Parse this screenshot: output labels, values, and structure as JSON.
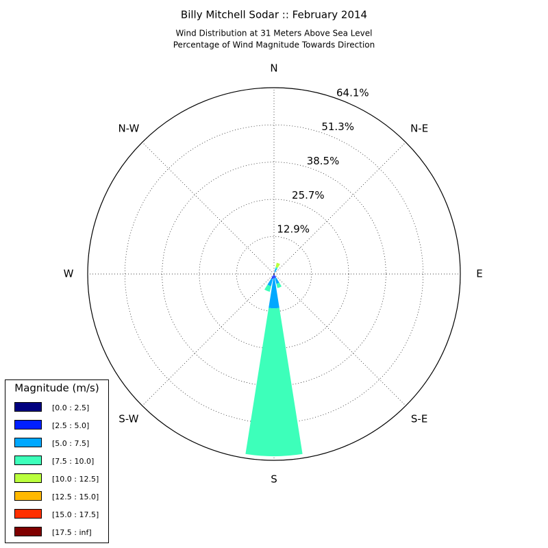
{
  "chart_data": {
    "type": "windrose",
    "title": "Billy Mitchell Sodar :: February 2014",
    "subtitle": [
      "Wind Distribution at 31 Meters Above Sea Level",
      "Percentage of Wind Magnitude Towards Direction"
    ],
    "categories": [
      "N",
      null,
      "N-E",
      null,
      "E",
      null,
      "S-E",
      null,
      "S",
      null,
      "S-W",
      null,
      "W",
      null,
      "N-W",
      null
    ],
    "rlim": [
      0,
      64.1
    ],
    "rticks": [
      {
        "value": 12.9,
        "label": "12.9%"
      },
      {
        "value": 25.7,
        "label": "25.7%"
      },
      {
        "value": 38.5,
        "label": "38.5%"
      },
      {
        "value": 51.3,
        "label": "51.3%"
      },
      {
        "value": 64.1,
        "label": "64.1%"
      }
    ],
    "grid": true,
    "legend_title": "Magnitude (m/s)",
    "legend_position": "lower left",
    "series": [
      {
        "name": "[0.0 : 2.5]",
        "color": "#00007f",
        "values": [
          0,
          0,
          0,
          0,
          0,
          0,
          0,
          0.3,
          0.5,
          0.3,
          0,
          0,
          0,
          0,
          0,
          0
        ]
      },
      {
        "name": "[2.5 : 5.0]",
        "color": "#0020ff",
        "values": [
          0,
          0.5,
          0,
          0,
          0,
          0,
          0,
          1.0,
          1.0,
          1.5,
          0,
          0,
          0,
          0,
          0,
          0
        ]
      },
      {
        "name": "[5.0 : 7.5]",
        "color": "#00a8ff",
        "values": [
          0,
          1.5,
          0,
          0,
          0,
          0,
          0,
          2.2,
          10.3,
          2.5,
          0,
          0,
          0,
          0,
          0,
          0
        ]
      },
      {
        "name": "[7.5 : 10.0]",
        "color": "#3dffba",
        "values": [
          0,
          0.5,
          0,
          0,
          0,
          0,
          0,
          1.5,
          50.9,
          2.0,
          0,
          0,
          0,
          0,
          0,
          0
        ]
      },
      {
        "name": "[10.0 : 12.5]",
        "color": "#baff3d",
        "values": [
          0,
          1.5,
          0,
          0,
          0,
          0,
          0,
          0,
          0,
          0,
          0,
          0,
          0,
          0,
          0,
          0
        ]
      },
      {
        "name": "[12.5 : 15.0]",
        "color": "#ffb900",
        "values": [
          0,
          0,
          0,
          0,
          0,
          0,
          0,
          0,
          0,
          0,
          0,
          0,
          0,
          0,
          0,
          0
        ]
      },
      {
        "name": "[15.0 : 17.5]",
        "color": "#ff3000",
        "values": [
          0,
          0,
          0,
          0,
          0,
          0,
          0,
          0,
          0,
          0,
          0,
          0,
          0,
          0,
          0,
          0
        ]
      },
      {
        "name": "[17.5 : inf]",
        "color": "#7f0000",
        "values": [
          0,
          0,
          0,
          0,
          0,
          0,
          0,
          0,
          0,
          0,
          0,
          0,
          0,
          0,
          0,
          0
        ]
      }
    ]
  }
}
